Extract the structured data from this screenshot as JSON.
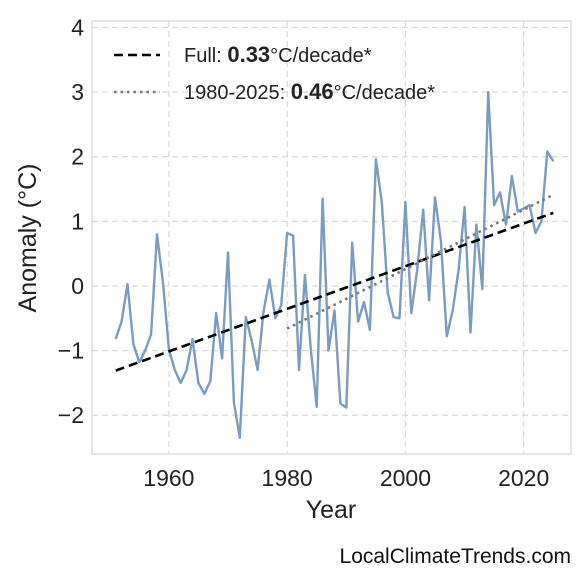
{
  "chart_data": {
    "type": "line",
    "xlabel": "Year",
    "ylabel": "Anomaly (°C)",
    "xlim": [
      1947,
      2028
    ],
    "ylim": [
      -2.6,
      4.1
    ],
    "x_ticks": [
      1960,
      1980,
      2000,
      2020
    ],
    "y_ticks": [
      -2,
      -1,
      0,
      1,
      2,
      3,
      4
    ],
    "grid": true,
    "legend_position": "top-left",
    "series": [
      {
        "color": "#7b9bbf",
        "style": "solid",
        "x": [
          1951,
          1952,
          1953,
          1954,
          1955,
          1956,
          1957,
          1958,
          1959,
          1960,
          1961,
          1962,
          1963,
          1964,
          1965,
          1966,
          1967,
          1968,
          1969,
          1970,
          1971,
          1972,
          1973,
          1974,
          1975,
          1976,
          1977,
          1978,
          1979,
          1980,
          1981,
          1982,
          1983,
          1984,
          1985,
          1986,
          1987,
          1988,
          1989,
          1990,
          1991,
          1992,
          1993,
          1994,
          1995,
          1996,
          1997,
          1998,
          1999,
          2000,
          2001,
          2002,
          2003,
          2004,
          2005,
          2006,
          2007,
          2008,
          2009,
          2010,
          2011,
          2012,
          2013,
          2014,
          2015,
          2016,
          2017,
          2018,
          2019,
          2020,
          2021,
          2022,
          2023,
          2024,
          2025
        ],
        "y": [
          -0.82,
          -0.55,
          0.03,
          -0.9,
          -1.18,
          -1.0,
          -0.75,
          0.8,
          0.05,
          -0.98,
          -1.3,
          -1.5,
          -1.3,
          -0.82,
          -1.5,
          -1.67,
          -1.47,
          -0.42,
          -1.12,
          0.52,
          -1.8,
          -2.35,
          -0.48,
          -0.85,
          -1.3,
          -0.4,
          0.1,
          -0.5,
          -0.3,
          0.82,
          0.78,
          -1.3,
          0.17,
          -0.98,
          -1.87,
          1.35,
          -1.0,
          -0.38,
          -1.82,
          -1.88,
          0.67,
          -0.55,
          -0.25,
          -0.68,
          1.96,
          1.3,
          -0.1,
          -0.48,
          -0.5,
          1.3,
          -0.42,
          0.25,
          1.18,
          -0.22,
          1.37,
          0.7,
          -0.78,
          -0.38,
          0.25,
          1.22,
          -0.72,
          0.95,
          -0.05,
          3.0,
          1.25,
          1.45,
          0.95,
          1.7,
          1.15,
          1.2,
          1.25,
          0.82,
          1.0,
          2.08,
          1.93
        ]
      },
      {
        "name": "Full",
        "color": "#000000",
        "style": "dashed",
        "x": [
          1951,
          2025
        ],
        "y": [
          -1.31,
          1.13
        ]
      },
      {
        "name": "1980-2025",
        "color": "#777777",
        "style": "dotted",
        "x": [
          1980,
          2025
        ],
        "y": [
          -0.66,
          1.41
        ]
      }
    ],
    "legend": [
      {
        "prefix": "Full: ",
        "value": "0.33",
        "suffix": "°C/decade*"
      },
      {
        "prefix": "1980-2025: ",
        "value": "0.46",
        "suffix": "°C/decade*"
      }
    ]
  },
  "watermark": "LocalClimateTrends.com"
}
